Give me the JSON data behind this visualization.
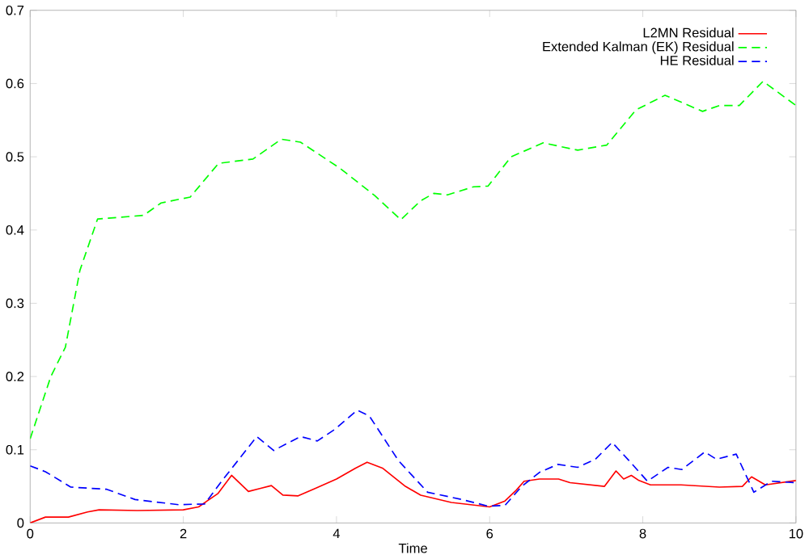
{
  "chart_data": {
    "type": "line",
    "xlabel": "Time",
    "xlim": [
      0,
      10
    ],
    "ylim": [
      0,
      0.7
    ],
    "xticks": [
      0,
      2,
      4,
      6,
      8,
      10
    ],
    "yticks": [
      0,
      0.1,
      0.2,
      0.3,
      0.4,
      0.5,
      0.6,
      0.7
    ],
    "legend": "top right",
    "grid": false,
    "marker": "none",
    "series": [
      {
        "name": "L2MN Residual",
        "color": "#ff0000",
        "line_style": "solid",
        "x": [
          0,
          0.2,
          0.5,
          0.75,
          0.9,
          1.4,
          2.0,
          2.2,
          2.45,
          2.63,
          2.85,
          3.0,
          3.15,
          3.3,
          3.5,
          3.72,
          4.0,
          4.25,
          4.4,
          4.6,
          4.9,
          5.1,
          5.5,
          6.0,
          6.2,
          6.35,
          6.45,
          6.65,
          6.9,
          7.05,
          7.5,
          7.65,
          7.75,
          7.85,
          7.95,
          8.1,
          8.5,
          9.0,
          9.3,
          9.42,
          9.6,
          10
        ],
        "values": [
          0,
          0.008,
          0.008,
          0.015,
          0.018,
          0.017,
          0.018,
          0.022,
          0.04,
          0.065,
          0.043,
          0.047,
          0.051,
          0.038,
          0.037,
          0.047,
          0.06,
          0.075,
          0.083,
          0.075,
          0.05,
          0.038,
          0.028,
          0.022,
          0.03,
          0.045,
          0.057,
          0.06,
          0.06,
          0.055,
          0.05,
          0.071,
          0.06,
          0.065,
          0.058,
          0.052,
          0.052,
          0.049,
          0.05,
          0.063,
          0.052,
          0.058
        ]
      },
      {
        "name": "Extended Kalman (EK) Residual",
        "color": "#00ff00",
        "line_style": "dashed",
        "x": [
          0,
          0.27,
          0.46,
          0.65,
          0.88,
          1.48,
          1.71,
          2.09,
          2.46,
          2.91,
          3.28,
          3.53,
          4.05,
          4.5,
          4.84,
          5.1,
          5.27,
          5.45,
          5.79,
          5.98,
          6.28,
          6.7,
          7.15,
          7.53,
          7.91,
          8.29,
          8.78,
          9.0,
          9.26,
          9.57,
          10
        ],
        "values": [
          0.115,
          0.2,
          0.24,
          0.345,
          0.415,
          0.42,
          0.437,
          0.445,
          0.491,
          0.497,
          0.524,
          0.52,
          0.484,
          0.447,
          0.414,
          0.44,
          0.45,
          0.448,
          0.459,
          0.46,
          0.5,
          0.519,
          0.509,
          0.516,
          0.564,
          0.584,
          0.562,
          0.57,
          0.57,
          0.603,
          0.57
        ]
      },
      {
        "name": "HE Residual",
        "color": "#0000ff",
        "line_style": "dashed",
        "x": [
          0,
          0.2,
          0.53,
          1.0,
          1.37,
          1.94,
          2.28,
          2.5,
          2.96,
          3.18,
          3.53,
          3.75,
          3.98,
          4.27,
          4.43,
          4.81,
          5.19,
          5.64,
          5.98,
          6.2,
          6.42,
          6.65,
          6.89,
          7.15,
          7.38,
          7.6,
          7.83,
          8.06,
          8.33,
          8.51,
          8.81,
          8.96,
          9.22,
          9.45,
          9.68,
          10
        ],
        "values": [
          0.078,
          0.07,
          0.049,
          0.046,
          0.032,
          0.025,
          0.026,
          0.057,
          0.118,
          0.099,
          0.118,
          0.112,
          0.128,
          0.154,
          0.146,
          0.085,
          0.042,
          0.032,
          0.023,
          0.024,
          0.05,
          0.069,
          0.08,
          0.076,
          0.087,
          0.11,
          0.084,
          0.057,
          0.076,
          0.073,
          0.097,
          0.087,
          0.094,
          0.042,
          0.057,
          0.055
        ]
      }
    ]
  }
}
